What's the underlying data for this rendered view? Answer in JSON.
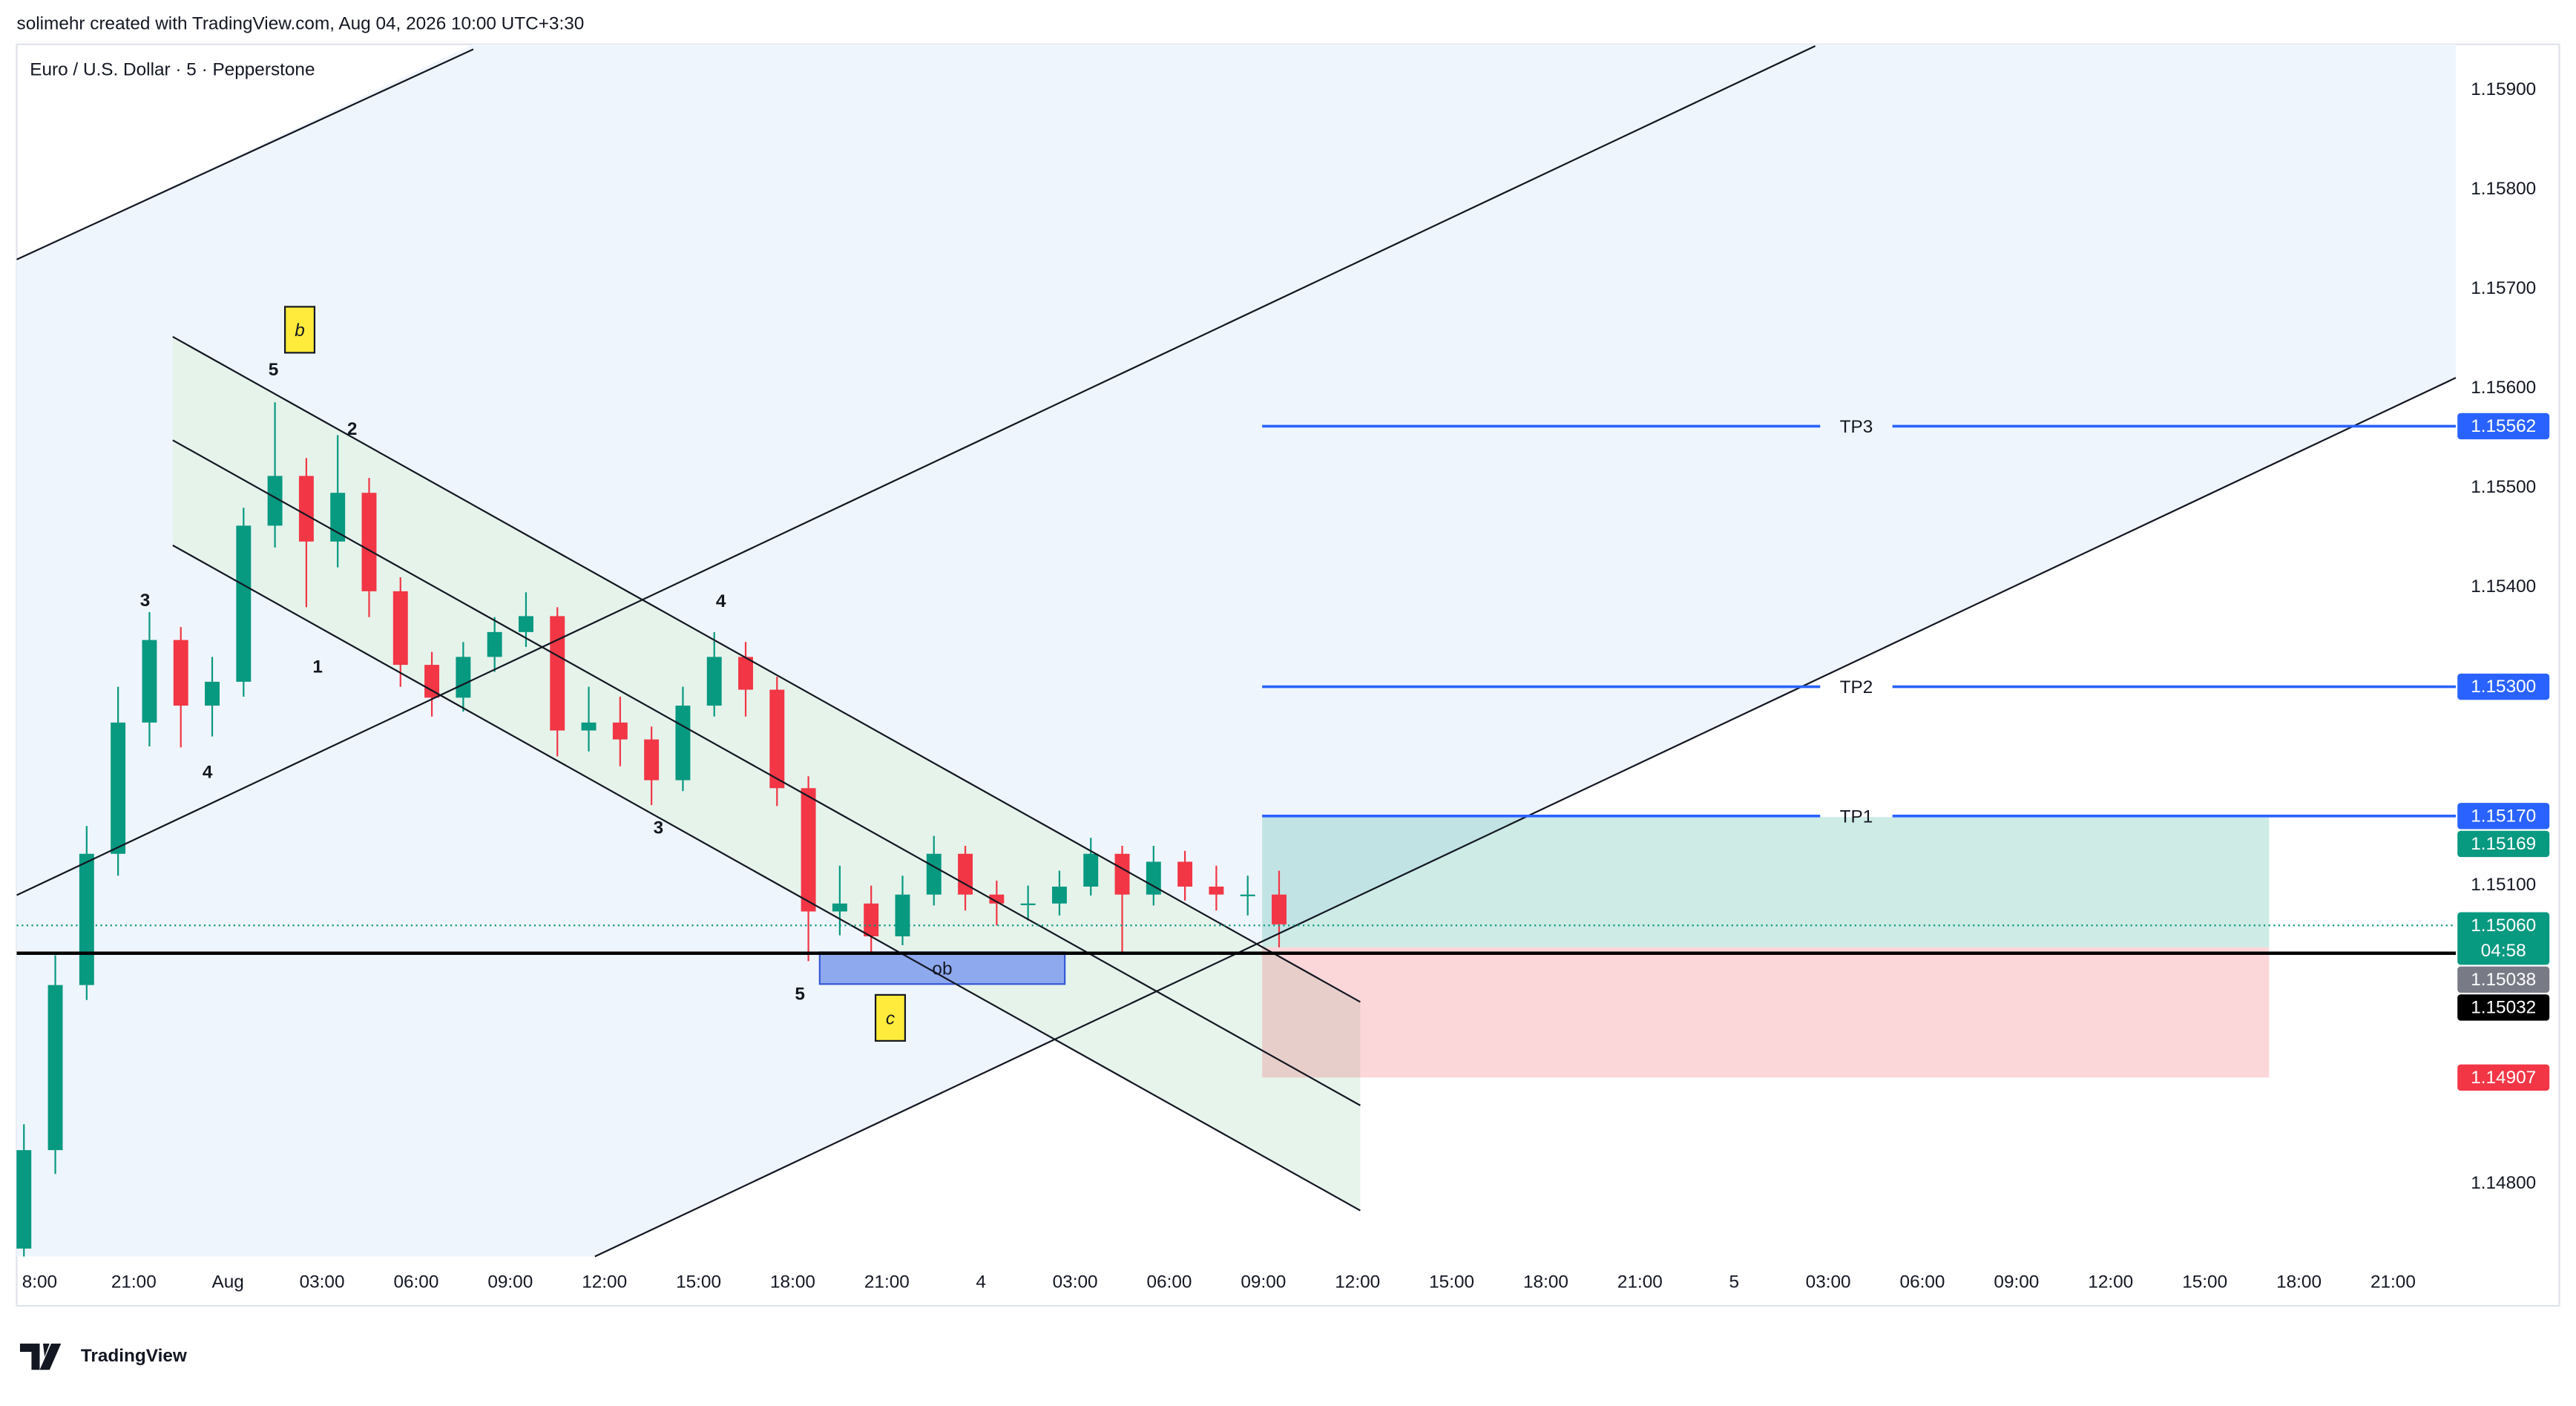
{
  "header": {
    "credit": "solimehr created with TradingView.com, Aug 04, 2026 10:00 UTC+3:30",
    "logo": "TradingView"
  },
  "chart_data": {
    "type": "candlestick",
    "title": "Euro / U.S. Dollar · 5 · Pepperstone",
    "x": [
      -0.5,
      0.5,
      1.5,
      2.5,
      3.5,
      4.5,
      5.5,
      6.5,
      7.5,
      8.5,
      9.5,
      10.5,
      11.5,
      12.5,
      13.5,
      14.5,
      15.5,
      16.5,
      17.5,
      18.5,
      19.5,
      20.5,
      21.5,
      22.5,
      23.5,
      24.5,
      25.5,
      26.5,
      27.5,
      28.5,
      29.5,
      30.5,
      31.5,
      32.5,
      33.5,
      34.5,
      35.5,
      36.5,
      37.5,
      38.5,
      39.5
    ],
    "open": [
      1.14735,
      1.14834,
      1.15,
      1.15132,
      1.15264,
      1.15347,
      1.15281,
      1.15305,
      1.15462,
      1.15512,
      1.15446,
      1.15495,
      1.15396,
      1.15322,
      1.15289,
      1.1533,
      1.15355,
      1.15371,
      1.15256,
      1.15264,
      1.15247,
      1.15206,
      1.15281,
      1.1533,
      1.15297,
      1.15198,
      1.15074,
      1.15082,
      1.15049,
      1.15091,
      1.15132,
      1.15091,
      1.15082,
      1.15082,
      1.15099,
      1.15132,
      1.15091,
      1.15124,
      1.15099,
      1.15091,
      1.15091
    ],
    "high": [
      1.1486,
      1.1503,
      1.1516,
      1.153,
      1.15375,
      1.1536,
      1.1533,
      1.1548,
      1.15586,
      1.1553,
      1.15553,
      1.1551,
      1.1541,
      1.15335,
      1.15345,
      1.1537,
      1.15395,
      1.1538,
      1.153,
      1.1529,
      1.1526,
      1.153,
      1.15355,
      1.15345,
      1.1531,
      1.1521,
      1.1512,
      1.151,
      1.1511,
      1.1515,
      1.1514,
      1.15105,
      1.151,
      1.15115,
      1.15148,
      1.1514,
      1.1514,
      1.15135,
      1.1512,
      1.1511,
      1.15115
    ],
    "low": [
      1.14727,
      1.1481,
      1.14985,
      1.1511,
      1.1524,
      1.15239,
      1.1525,
      1.1529,
      1.1544,
      1.1538,
      1.1542,
      1.1537,
      1.153,
      1.1527,
      1.15275,
      1.15315,
      1.1534,
      1.1523,
      1.15235,
      1.1522,
      1.15181,
      1.15195,
      1.1527,
      1.1527,
      1.1518,
      1.15024,
      1.1505,
      1.15033,
      1.1504,
      1.1508,
      1.15075,
      1.1506,
      1.15065,
      1.1507,
      1.1509,
      1.15033,
      1.1508,
      1.15085,
      1.15075,
      1.1507,
      1.15038
    ],
    "close": [
      1.14834,
      1.15,
      1.15132,
      1.15264,
      1.15347,
      1.15281,
      1.15305,
      1.15462,
      1.15512,
      1.15446,
      1.15495,
      1.15396,
      1.15322,
      1.15289,
      1.1533,
      1.15355,
      1.15371,
      1.15256,
      1.15264,
      1.15247,
      1.15206,
      1.15281,
      1.1533,
      1.15297,
      1.15198,
      1.15074,
      1.15082,
      1.15049,
      1.15091,
      1.15132,
      1.15091,
      1.15082,
      1.15082,
      1.15099,
      1.15132,
      1.15091,
      1.15124,
      1.15099,
      1.15091,
      1.15091,
      1.15061
    ],
    "up_color": "#089981",
    "down_color": "#f23645",
    "xlim": [
      -0.73,
      77
    ],
    "ylim": [
      1.14727,
      1.15946
    ],
    "xticks": [
      {
        "value": 0,
        "label": "8:00"
      },
      {
        "value": 3,
        "label": "21:00"
      },
      {
        "value": 6,
        "label": "Aug"
      },
      {
        "value": 9,
        "label": "03:00"
      },
      {
        "value": 12,
        "label": "06:00"
      },
      {
        "value": 15,
        "label": "09:00"
      },
      {
        "value": 18,
        "label": "12:00"
      },
      {
        "value": 21,
        "label": "15:00"
      },
      {
        "value": 24,
        "label": "18:00"
      },
      {
        "value": 27,
        "label": "21:00"
      },
      {
        "value": 30,
        "label": "4"
      },
      {
        "value": 33,
        "label": "03:00"
      },
      {
        "value": 36,
        "label": "06:00"
      },
      {
        "value": 39,
        "label": "09:00"
      },
      {
        "value": 42,
        "label": "12:00"
      },
      {
        "value": 45,
        "label": "15:00"
      },
      {
        "value": 48,
        "label": "18:00"
      },
      {
        "value": 51,
        "label": "21:00"
      },
      {
        "value": 54,
        "label": "5"
      },
      {
        "value": 57,
        "label": "03:00"
      },
      {
        "value": 60,
        "label": "06:00"
      },
      {
        "value": 63,
        "label": "09:00"
      },
      {
        "value": 66,
        "label": "12:00"
      },
      {
        "value": 69,
        "label": "15:00"
      },
      {
        "value": 72,
        "label": "18:00"
      },
      {
        "value": 75,
        "label": "21:00"
      }
    ],
    "yticks": [
      {
        "value": 1.159,
        "label": "1.15900"
      },
      {
        "value": 1.158,
        "label": "1.15800"
      },
      {
        "value": 1.157,
        "label": "1.15700"
      },
      {
        "value": 1.156,
        "label": "1.15600"
      },
      {
        "value": 1.155,
        "label": "1.15500"
      },
      {
        "value": 1.154,
        "label": "1.15400"
      },
      {
        "value": 1.151,
        "label": "1.15100"
      },
      {
        "value": 1.148,
        "label": "1.14800"
      }
    ],
    "targets": [
      {
        "name": "TP3",
        "value": 1.15562,
        "label": "1.15562"
      },
      {
        "name": "TP2",
        "value": 1.153,
        "label": "1.15300"
      },
      {
        "name": "TP1",
        "value": 1.1517,
        "label": "1.15170"
      }
    ],
    "target_color": "#2962ff",
    "position": {
      "x": [
        38.96,
        71.05
      ],
      "target": {
        "value": 1.15169,
        "label": "1.15169"
      },
      "entry": {
        "value": 1.15038,
        "label": "1.15038"
      },
      "stop": {
        "value": 1.14907,
        "label": "1.14907"
      }
    },
    "last_price": {
      "value": 1.1506,
      "label": "1.15060",
      "countdown": "04:58"
    },
    "hline": {
      "value": 1.15032,
      "label": "1.15032"
    },
    "annotations": [
      {
        "text": "3",
        "x": 3.36,
        "y": 1.15386
      },
      {
        "text": "4",
        "x": 5.35,
        "y": 1.15213
      },
      {
        "text": "5",
        "x": 7.45,
        "y": 1.15618
      },
      {
        "text": "1",
        "x": 8.86,
        "y": 1.15319
      },
      {
        "text": "2",
        "x": 9.96,
        "y": 1.15558
      },
      {
        "text": "3",
        "x": 19.72,
        "y": 1.15157
      },
      {
        "text": "4",
        "x": 21.71,
        "y": 1.15385
      },
      {
        "text": "5",
        "x": 24.23,
        "y": 1.1499
      },
      {
        "text": "b",
        "x": 8.29,
        "y": 1.15659
      },
      {
        "text": "c",
        "x": 27.11,
        "y": 1.14967
      }
    ],
    "order_block": {
      "label": "ob",
      "x": [
        24.86,
        32.67
      ],
      "y": [
        1.15001,
        1.15033
      ]
    }
  }
}
